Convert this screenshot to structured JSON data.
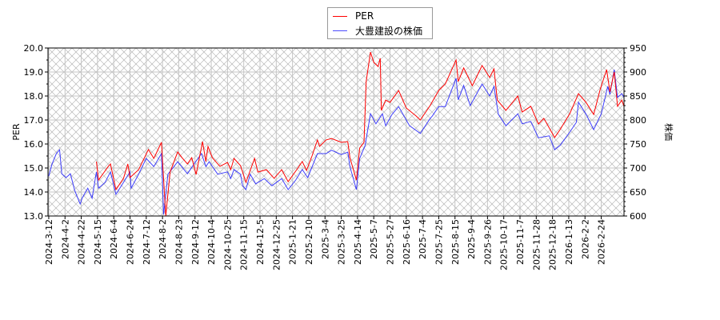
{
  "chart_data": {
    "type": "line",
    "title": "",
    "xlabel": "",
    "ylabel": "PER",
    "ylabel_right": "株価",
    "x_unit": "trading-day index from 2024-3-12",
    "xlim": [
      -0.7,
      531
    ],
    "ylim": [
      13.0,
      20.0
    ],
    "ylim_right": [
      600,
      950
    ],
    "yticks": [
      "13.0",
      "14.0",
      "15.0",
      "16.0",
      "17.0",
      "18.0",
      "19.0",
      "20.0"
    ],
    "yticks_right": [
      "600",
      "650",
      "700",
      "750",
      "800",
      "850",
      "900",
      "950"
    ],
    "xtick_step": 15,
    "xticks": [
      "2024-3-12",
      "2024-4-2",
      "2024-4-22",
      "2024-5-15",
      "2024-6-4",
      "2024-6-24",
      "2024-7-12",
      "2024-8-2",
      "2024-8-23",
      "2024-9-12",
      "2024-10-4",
      "2024-10-25",
      "2024-11-15",
      "2024-12-5",
      "2024-12-25",
      "2025-1-21",
      "2025-2-10",
      "2025-3-4",
      "2025-3-25",
      "2025-4-14",
      "2025-5-7",
      "2025-5-27",
      "2025-6-16",
      "2025-7-4",
      "2025-7-25",
      "2025-8-15",
      "2025-9-4",
      "2025-9-26",
      "2025-10-17",
      "2025-11-7",
      "2025-11-28",
      "2025-12-18",
      "2026-1-13",
      "2026-2-2",
      "2026-2-24"
    ],
    "grid": true,
    "legend_position": "top-center",
    "series": [
      {
        "name": "PER",
        "axis": "left",
        "color": "#ff0000",
        "x": [
          44,
          46,
          55,
          57,
          62,
          69,
          73,
          75,
          83,
          92,
          97,
          104,
          108,
          112,
          119,
          123,
          128,
          132,
          136,
          142,
          145,
          147,
          151,
          158,
          165,
          168,
          171,
          177,
          179,
          182,
          190,
          193,
          201,
          208,
          215,
          221,
          230,
          234,
          238,
          243,
          248,
          250,
          256,
          261,
          270,
          276,
          278,
          284,
          287,
          291,
          293,
          297,
          300,
          304,
          306,
          307,
          311,
          315,
          323,
          330,
          339,
          343,
          352,
          360,
          366,
          376,
          378,
          383,
          391,
          400,
          407,
          411,
          414,
          422,
          433,
          437,
          445,
          452,
          457,
          467,
          472,
          481,
          489,
          496,
          503,
          509,
          515,
          518,
          522,
          525,
          529,
          531
        ],
        "y": [
          15.27,
          14.5,
          15.07,
          15.17,
          14.1,
          14.57,
          15.17,
          14.6,
          14.93,
          15.77,
          15.4,
          16.07,
          13.0,
          14.83,
          15.67,
          15.43,
          15.17,
          15.43,
          14.73,
          16.1,
          15.27,
          15.9,
          15.43,
          15.07,
          15.23,
          14.93,
          15.4,
          15.1,
          14.83,
          14.4,
          15.4,
          14.83,
          14.93,
          14.57,
          14.93,
          14.43,
          15.0,
          15.27,
          14.9,
          15.5,
          16.17,
          15.9,
          16.17,
          16.23,
          16.07,
          16.1,
          15.43,
          14.5,
          15.83,
          16.07,
          18.6,
          19.83,
          19.4,
          19.23,
          19.57,
          17.4,
          17.83,
          17.73,
          18.23,
          17.5,
          17.17,
          17.0,
          17.6,
          18.23,
          18.5,
          19.5,
          18.6,
          19.17,
          18.43,
          19.27,
          18.77,
          19.13,
          17.83,
          17.4,
          18.0,
          17.33,
          17.57,
          16.83,
          17.07,
          16.27,
          16.6,
          17.27,
          18.1,
          17.73,
          17.23,
          18.27,
          19.1,
          18.17,
          19.0,
          17.57,
          17.83,
          17.57
        ]
      },
      {
        "name": "大豊建設の株価",
        "axis": "right",
        "color": "#0000ff",
        "x": [
          0,
          3,
          7,
          10,
          12,
          16,
          20,
          24,
          29,
          31,
          36,
          40,
          44,
          46,
          52,
          57,
          62,
          69,
          75,
          76,
          83,
          90,
          97,
          104,
          106,
          110,
          119,
          128,
          134,
          141,
          145,
          148,
          156,
          165,
          168,
          171,
          177,
          179,
          182,
          186,
          191,
          199,
          206,
          215,
          221,
          228,
          234,
          239,
          248,
          256,
          261,
          270,
          276,
          278,
          284,
          287,
          292,
          297,
          302,
          308,
          311,
          317,
          323,
          333,
          343,
          352,
          354,
          360,
          366,
          376,
          378,
          383,
          389,
          400,
          407,
          411,
          415,
          422,
          433,
          437,
          445,
          452,
          462,
          467,
          472,
          481,
          487,
          489,
          496,
          503,
          510,
          516,
          518,
          522,
          525,
          529,
          531
        ],
        "y": [
          683,
          708,
          730,
          738,
          688,
          680,
          688,
          653,
          625,
          638,
          658,
          637,
          692,
          658,
          670,
          692,
          645,
          670,
          692,
          658,
          687,
          720,
          703,
          730,
          603,
          687,
          713,
          688,
          708,
          730,
          703,
          713,
          687,
          692,
          678,
          697,
          687,
          663,
          655,
          687,
          667,
          678,
          663,
          678,
          655,
          675,
          697,
          680,
          730,
          730,
          737,
          728,
          733,
          703,
          655,
          720,
          747,
          813,
          792,
          813,
          788,
          812,
          828,
          788,
          772,
          803,
          808,
          828,
          828,
          887,
          842,
          872,
          830,
          875,
          850,
          870,
          812,
          788,
          813,
          792,
          797,
          763,
          767,
          738,
          747,
          775,
          795,
          837,
          812,
          780,
          813,
          870,
          853,
          905,
          847,
          855,
          847
        ]
      }
    ]
  }
}
